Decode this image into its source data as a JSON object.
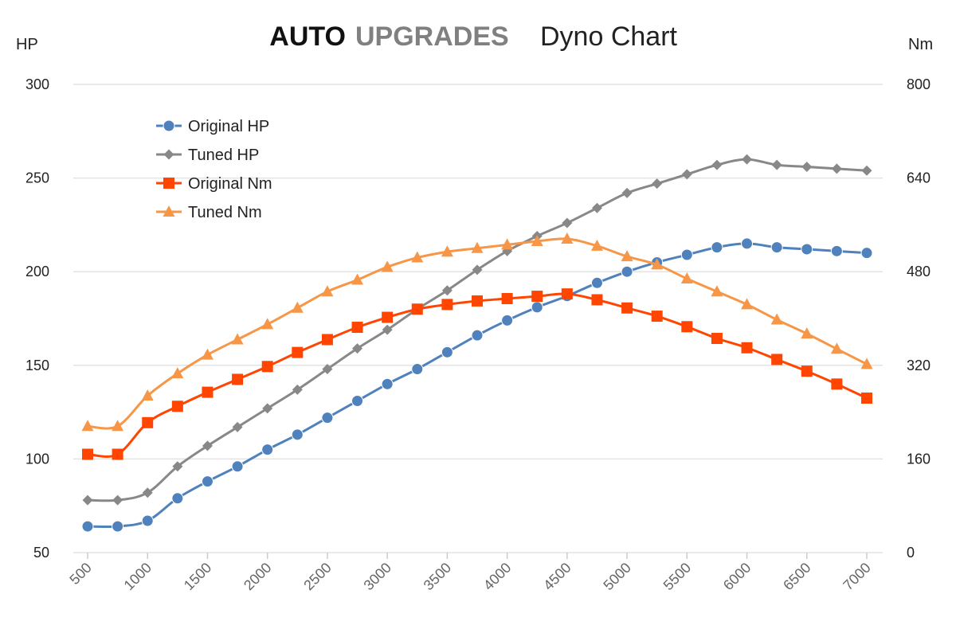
{
  "colors": {
    "original_hp": "#4f81bd",
    "tuned_hp": "#888888",
    "original_nm": "#ff4500",
    "tuned_nm": "#f79646",
    "brand_dark": "#111111",
    "brand_grey": "#808080"
  },
  "chart_data": {
    "type": "line",
    "title_brand_bold": "AUTO",
    "title_brand_grey": "UPGRADES",
    "title": "Dyno Chart",
    "ylabel_left": "HP",
    "ylabel_right": "Nm",
    "xlabel": "",
    "ylim_left": [
      50,
      300
    ],
    "ylim_right": [
      0,
      800
    ],
    "yticks_left": [
      "300",
      "250",
      "200",
      "150",
      "100",
      "50"
    ],
    "yticks_right": [
      "800",
      "640",
      "480",
      "320",
      "160",
      "0"
    ],
    "xticks": [
      "500",
      "1000",
      "1500",
      "2000",
      "2500",
      "3000",
      "3500",
      "4000",
      "4500",
      "5000",
      "5500",
      "6000",
      "6500",
      "7000"
    ],
    "grid": true,
    "legend_position": "top-left",
    "x": [
      500,
      750,
      1000,
      1250,
      1500,
      1750,
      2000,
      2250,
      2500,
      2750,
      3000,
      3250,
      3500,
      3750,
      4000,
      4250,
      4500,
      4750,
      5000,
      5250,
      5500,
      5750,
      6000,
      6250,
      6500,
      6750,
      7000
    ],
    "series": [
      {
        "name": "Original HP",
        "axis": "left",
        "marker": "circle",
        "values": [
          64,
          64,
          67,
          79,
          88,
          96,
          105,
          113,
          122,
          131,
          140,
          148,
          157,
          166,
          174,
          181,
          187,
          194,
          200,
          205,
          209,
          213,
          215,
          213,
          212,
          211,
          210
        ]
      },
      {
        "name": "Tuned HP",
        "axis": "left",
        "marker": "diamond",
        "values": [
          78,
          78,
          82,
          96,
          107,
          117,
          127,
          137,
          148,
          159,
          169,
          180,
          190,
          201,
          211,
          219,
          226,
          234,
          242,
          247,
          252,
          257,
          260,
          257,
          256,
          255,
          254
        ]
      },
      {
        "name": "Original Nm",
        "axis": "right",
        "marker": "square",
        "values": [
          168,
          168,
          222,
          250,
          274,
          296,
          318,
          342,
          364,
          385,
          402,
          416,
          424,
          430,
          434,
          438,
          442,
          432,
          418,
          404,
          386,
          366,
          350,
          330,
          310,
          288,
          264
        ]
      },
      {
        "name": "Tuned Nm",
        "axis": "right",
        "marker": "triangle",
        "values": [
          216,
          216,
          268,
          306,
          338,
          364,
          390,
          418,
          446,
          466,
          488,
          504,
          514,
          520,
          526,
          532,
          536,
          524,
          506,
          492,
          468,
          446,
          424,
          398,
          374,
          348,
          322
        ]
      }
    ]
  }
}
